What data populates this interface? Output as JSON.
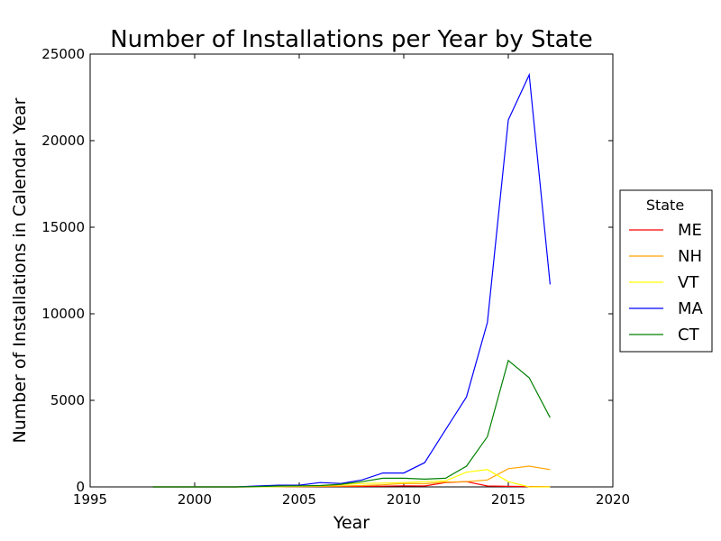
{
  "chart_data": {
    "type": "line",
    "title": "Number of Installations per Year by State",
    "xlabel": "Year",
    "ylabel": "Number of Installations in Calendar Year",
    "xlim": [
      1995,
      2020
    ],
    "ylim": [
      0,
      25000
    ],
    "xticks": [
      "1995",
      "2000",
      "2005",
      "2010",
      "2015",
      "2020"
    ],
    "yticks": [
      "0",
      "5000",
      "10000",
      "15000",
      "20000",
      "25000"
    ],
    "grid": false,
    "legend": {
      "title": "State",
      "placement": "outside-right"
    },
    "x": [
      1998,
      1999,
      2000,
      2001,
      2002,
      2003,
      2004,
      2005,
      2006,
      2007,
      2008,
      2009,
      2010,
      2011,
      2012,
      2013,
      2014,
      2015,
      2016,
      2017
    ],
    "series": [
      {
        "name": "ME",
        "color": "#ff0000",
        "values": [
          0,
          0,
          0,
          0,
          0,
          5,
          10,
          20,
          25,
          30,
          30,
          40,
          60,
          50,
          250,
          300,
          50,
          30,
          20,
          10
        ]
      },
      {
        "name": "NH",
        "color": "#ffa500",
        "values": [
          0,
          0,
          0,
          0,
          0,
          5,
          10,
          20,
          30,
          50,
          80,
          120,
          200,
          180,
          280,
          300,
          400,
          1050,
          1200,
          1000
        ]
      },
      {
        "name": "VT",
        "color": "#ffff00",
        "values": [
          0,
          0,
          0,
          0,
          0,
          5,
          20,
          40,
          80,
          120,
          200,
          220,
          250,
          300,
          350,
          850,
          1000,
          300,
          0,
          0
        ]
      },
      {
        "name": "MA",
        "color": "#0000ff",
        "values": [
          0,
          0,
          0,
          0,
          0,
          50,
          100,
          100,
          250,
          200,
          400,
          800,
          800,
          1400,
          3300,
          5200,
          9500,
          21200,
          23800,
          11700
        ]
      },
      {
        "name": "CT",
        "color": "#008000",
        "values": [
          0,
          0,
          0,
          0,
          0,
          20,
          50,
          60,
          80,
          150,
          300,
          500,
          500,
          450,
          500,
          1200,
          2900,
          7300,
          6300,
          4000
        ]
      }
    ]
  }
}
